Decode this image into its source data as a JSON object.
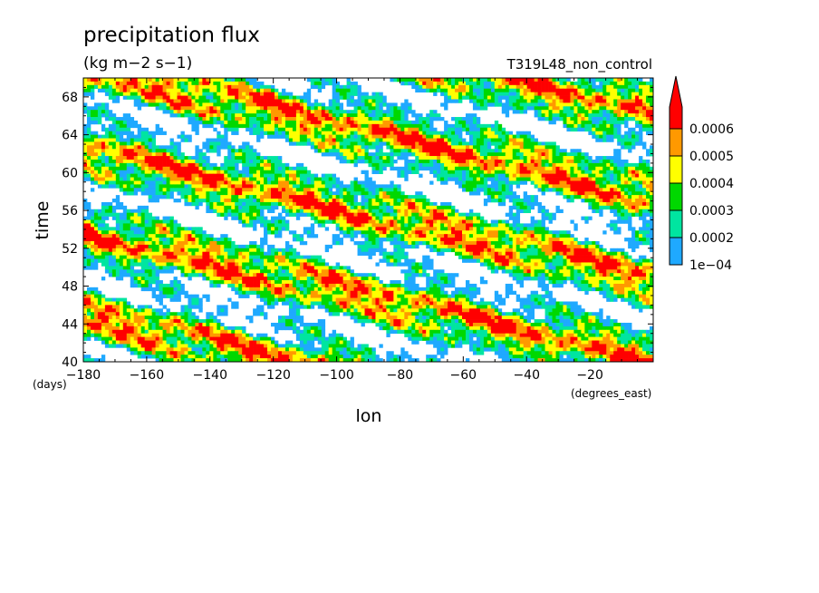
{
  "chart_data": {
    "type": "heatmap",
    "title": "precipitation flux",
    "units": "(kg m−2 s−1)",
    "run_label": "T319L48_non_control",
    "xlabel": "lon",
    "xunits": "(degrees_east)",
    "ylabel": "time",
    "yunits": "(days)",
    "x_ticks": [
      "−180",
      "−160",
      "−140",
      "−120",
      "−100",
      "−80",
      "−60",
      "−40",
      "−20"
    ],
    "y_ticks": [
      "40",
      "44",
      "48",
      "52",
      "56",
      "60",
      "64",
      "68"
    ],
    "xlim": [
      -180,
      0
    ],
    "ylim": [
      40,
      70
    ],
    "colorbar": {
      "labels": [
        "1e−04",
        "0.0002",
        "0.0003",
        "0.0004",
        "0.0005",
        "0.0006"
      ],
      "levels": [
        0.0001,
        0.0002,
        0.0003,
        0.0004,
        0.0005,
        0.0006
      ],
      "colors": [
        "#1fa9ff",
        "#00e5a0",
        "#00d800",
        "#ffff00",
        "#ff9900",
        "#ff0000"
      ],
      "extend": "max"
    }
  }
}
